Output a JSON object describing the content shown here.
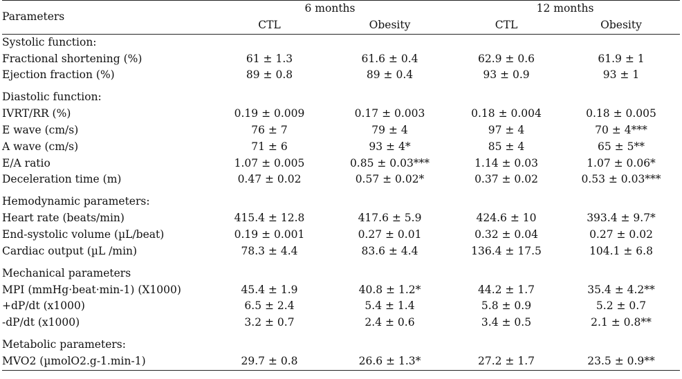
{
  "header": {
    "parameters_label": "Parameters",
    "groups": [
      "6 months",
      "12 months"
    ],
    "subcols": [
      "CTL",
      "Obesity",
      "CTL",
      "Obesity"
    ]
  },
  "sections": [
    {
      "title": "Systolic function:",
      "rows": [
        {
          "label": "Fractional shortening (%)",
          "values": [
            "61 ± 1.3",
            "61.6 ± 0.4",
            "62.9 ± 0.6",
            "61.9 ± 1"
          ]
        },
        {
          "label": "Ejection fraction (%)",
          "values": [
            "89 ± 0.8",
            "89 ± 0.4",
            "93 ± 0.9",
            "93 ± 1"
          ]
        }
      ]
    },
    {
      "title": "Diastolic function:",
      "rows": [
        {
          "label": "IVRT/RR (%)",
          "values": [
            "0.19 ± 0.009",
            "0.17 ± 0.003",
            "0.18 ± 0.004",
            "0.18 ± 0.005"
          ]
        },
        {
          "label": "E wave (cm/s)",
          "values": [
            "76 ± 7",
            "79 ± 4",
            "97 ± 4",
            "70 ± 4***"
          ]
        },
        {
          "label": "A wave (cm/s)",
          "values": [
            "71 ± 6",
            "93 ± 4*",
            "85 ± 4",
            "65 ± 5**"
          ]
        },
        {
          "label": "E/A ratio",
          "values": [
            "1.07 ± 0.005",
            "0.85 ± 0.03***",
            "1.14 ± 0.03",
            "1.07 ± 0.06*"
          ]
        },
        {
          "label": "Deceleration time (m)",
          "values": [
            "0.47 ± 0.02",
            "0.57 ± 0.02*",
            "0.37 ± 0.02",
            "0.53 ± 0.03***"
          ]
        }
      ]
    },
    {
      "title": "Hemodynamic parameters:",
      "rows": [
        {
          "label": "Heart rate (beats/min)",
          "values": [
            "415.4 ± 12.8",
            "417.6 ± 5.9",
            "424.6 ± 10",
            "393.4 ± 9.7*"
          ]
        },
        {
          "label": "End-systolic volume (µL/beat)",
          "values": [
            "0.19 ± 0.001",
            "0.27 ± 0.01",
            "0.32 ± 0.04",
            "0.27 ± 0.02"
          ]
        },
        {
          "label": "Cardiac output (µL /min)",
          "values": [
            "78.3 ± 4.4",
            "83.6 ± 4.4",
            "136.4 ± 17.5",
            "104.1 ± 6.8"
          ]
        }
      ]
    },
    {
      "title": "Mechanical parameters",
      "rows": [
        {
          "label": "MPI (mmHg·beat·min-1) (X1000)",
          "values": [
            "45.4 ± 1.9",
            "40.8 ± 1.2*",
            "44.2 ± 1.7",
            "35.4 ± 4.2**"
          ]
        },
        {
          "label": "+dP/dt (x1000)",
          "values": [
            "6.5 ± 2.4",
            "5.4 ± 1.4",
            "5.8 ± 0.9",
            "5.2 ± 0.7"
          ]
        },
        {
          "label": "-dP/dt (x1000)",
          "values": [
            "3.2 ± 0.7",
            "2.4 ± 0.6",
            "3.4 ± 0.5",
            "2.1 ± 0.8**"
          ]
        }
      ]
    },
    {
      "title": "Metabolic parameters:",
      "rows": [
        {
          "label": "MVO2 (µmolO2.g-1.min-1)",
          "values": [
            "29.7 ± 0.8",
            "26.6 ± 1.3*",
            "27.2 ± 1.7",
            "23.5 ± 0.9**"
          ]
        }
      ]
    }
  ]
}
